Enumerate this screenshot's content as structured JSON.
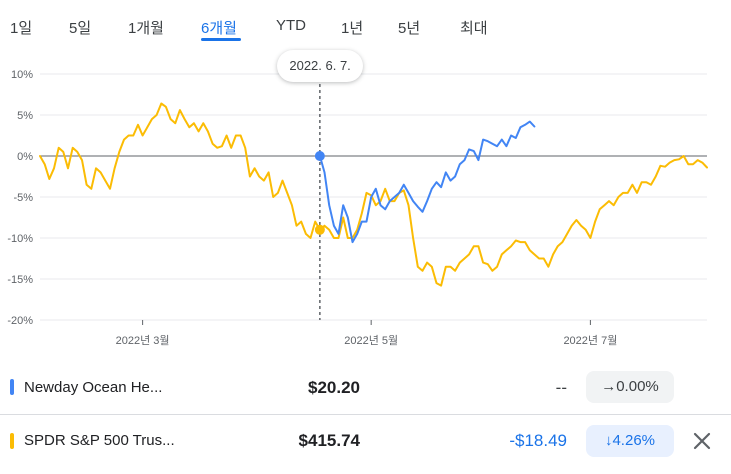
{
  "tabs": [
    {
      "label": "1일",
      "active": false
    },
    {
      "label": "5일",
      "active": false
    },
    {
      "label": "1개월",
      "active": false
    },
    {
      "label": "6개월",
      "active": true
    },
    {
      "label": "YTD",
      "active": false
    },
    {
      "label": "1년",
      "active": false
    },
    {
      "label": "5년",
      "active": false
    },
    {
      "label": "최대",
      "active": false
    }
  ],
  "tooltip": {
    "date": "2022. 6. 7."
  },
  "colors": {
    "series_blue": "#4285f4",
    "series_yellow": "#fbbc04",
    "gridline": "#e8eaed",
    "zero_line": "#5f6368"
  },
  "chart_data": {
    "type": "line",
    "y_ticks": [
      "10%",
      "5%",
      "0%",
      "-5%",
      "-10%",
      "-15%",
      "-20%"
    ],
    "ylim": [
      -20,
      10
    ],
    "x_ticks": [
      "2022년 3월",
      "2022년 5월",
      "2022년 7월"
    ],
    "grid": true,
    "highlight_index": 60,
    "series": [
      {
        "name": "Newday Ocean He...",
        "color": "#4285f4",
        "start_index": 60,
        "values": [
          0,
          -2,
          -6,
          -8.5,
          -9.5,
          -6,
          -7.5,
          -10.5,
          -9.5,
          -8,
          -8,
          -5,
          -4,
          -6,
          -6.5,
          -5.5,
          -5,
          -4.5,
          -3.5,
          -4.5,
          -5.5,
          -6.2,
          -6.8,
          -5.5,
          -4,
          -3.2,
          -3.8,
          -2,
          -3,
          -2.5,
          -1,
          -0.5,
          0.8,
          0.6,
          -0.5,
          2,
          1.8,
          1.5,
          1.2,
          2,
          1.2,
          2.5,
          2.2,
          3.5,
          3.8,
          4.2,
          3.6
        ]
      },
      {
        "name": "SPDR S&P 500 Trus...",
        "color": "#fbbc04",
        "start_index": 0,
        "values": [
          0,
          -1,
          -2.8,
          -1.5,
          1,
          0.5,
          -1.5,
          1,
          0.5,
          -0.5,
          -3.5,
          -4,
          -1.5,
          -2,
          -3,
          -4,
          -1.5,
          0.5,
          2,
          2.5,
          2.5,
          3.8,
          2.5,
          3.5,
          4.5,
          5,
          6.4,
          6,
          4.5,
          4,
          5.6,
          4.5,
          3.5,
          4,
          3,
          4,
          3,
          1.5,
          1,
          1.2,
          2.5,
          1,
          2.5,
          2.5,
          1,
          -2.5,
          -1.5,
          -2.5,
          -3,
          -2,
          -5,
          -4.5,
          -3,
          -4.5,
          -6,
          -8.5,
          -8,
          -9.5,
          -10,
          -8,
          -9,
          -8.5,
          -9,
          -10,
          -10,
          -7.5,
          -10,
          -10,
          -9,
          -7,
          -4.5,
          -4.8,
          -6,
          -5.5,
          -4,
          -5.5,
          -5.5,
          -4.5,
          -4.2,
          -6,
          -10,
          -13.5,
          -14,
          -13,
          -13.5,
          -15.5,
          -15.8,
          -13.5,
          -13.5,
          -14,
          -13,
          -12.5,
          -12,
          -11,
          -11,
          -13,
          -13.2,
          -14,
          -13.5,
          -12,
          -11.5,
          -11,
          -10.3,
          -10.5,
          -10.5,
          -11.5,
          -12,
          -12.5,
          -12.5,
          -13.5,
          -12,
          -11,
          -10.5,
          -9.5,
          -8.5,
          -7.8,
          -8.5,
          -9,
          -10,
          -8,
          -6.5,
          -6,
          -5.5,
          -6,
          -5,
          -4.5,
          -4.5,
          -3.5,
          -4.5,
          -3.2,
          -3.2,
          -3.5,
          -2.5,
          -1.2,
          -1.3,
          -0.8,
          -0.5,
          -0.4,
          0,
          -1,
          -1,
          -0.5,
          -0.8,
          -1.4
        ]
      }
    ]
  },
  "rows": [
    {
      "name": "Newday Ocean He...",
      "color": "#4285f4",
      "price": "$20.20",
      "change": "--",
      "percent": "→0.00%",
      "trend": "neutral"
    },
    {
      "name": "SPDR S&P 500 Trus...",
      "color": "#fbbc04",
      "price": "$415.74",
      "change": "-$18.49",
      "percent": "↓4.26%",
      "trend": "down"
    }
  ]
}
